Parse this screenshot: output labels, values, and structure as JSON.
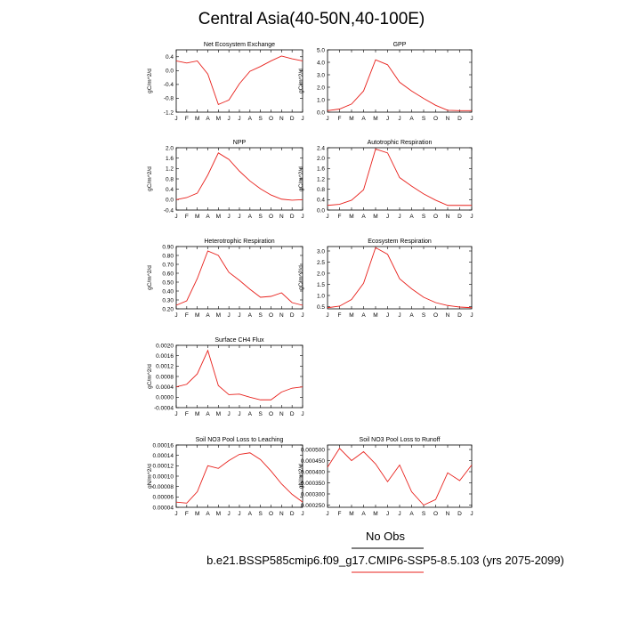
{
  "figure": {
    "title": "Central Asia(40-50N,40-100E)",
    "legend": {
      "obs_label": "No Obs",
      "obs_line_color": "#000000",
      "model_line_color": "#e8211c"
    },
    "caption": "b.e21.BSSP585cmip6.f09_g17.CMIP6-SSP5-8.5.103 (yrs 2075-2099)",
    "series_color": "#e8211c"
  },
  "chart_data": [
    {
      "type": "line",
      "title": "Net Ecosystem Exchange",
      "ylabel": "gC/m^2/d",
      "categories": [
        "J",
        "F",
        "M",
        "A",
        "M",
        "J",
        "J",
        "A",
        "S",
        "O",
        "N",
        "D",
        "J"
      ],
      "x": [
        1,
        2,
        3,
        4,
        5,
        6,
        7,
        8,
        9,
        10,
        11,
        12,
        13
      ],
      "values": [
        0.28,
        0.22,
        0.28,
        -0.1,
        -0.98,
        -0.85,
        -0.38,
        -0.02,
        0.12,
        0.28,
        0.42,
        0.34,
        0.28
      ],
      "ylim": [
        -1.2,
        0.6
      ],
      "yticks": [
        "0.4",
        "0.0",
        "-0.4",
        "-0.8",
        "-1.2"
      ],
      "ytick_values": [
        0.4,
        0.0,
        -0.4,
        -0.8,
        -1.2
      ]
    },
    {
      "type": "line",
      "title": "GPP",
      "ylabel": "gC/m^2/d",
      "categories": [
        "J",
        "F",
        "M",
        "A",
        "M",
        "J",
        "J",
        "A",
        "S",
        "O",
        "N",
        "D",
        "J"
      ],
      "x": [
        1,
        2,
        3,
        4,
        5,
        6,
        7,
        8,
        9,
        10,
        11,
        12,
        13
      ],
      "values": [
        0.12,
        0.25,
        0.65,
        1.7,
        4.2,
        3.8,
        2.4,
        1.7,
        1.1,
        0.55,
        0.15,
        0.12,
        0.12
      ],
      "ylim": [
        0,
        5.0
      ],
      "yticks": [
        "5.0",
        "4.0",
        "3.0",
        "2.0",
        "1.0",
        "0.0"
      ],
      "ytick_values": [
        5.0,
        4.0,
        3.0,
        2.0,
        1.0,
        0.0
      ]
    },
    {
      "type": "line",
      "title": "NPP",
      "ylabel": "gC/m^2/d",
      "categories": [
        "J",
        "F",
        "M",
        "A",
        "M",
        "J",
        "J",
        "A",
        "S",
        "O",
        "N",
        "D",
        "J"
      ],
      "x": [
        1,
        2,
        3,
        4,
        5,
        6,
        7,
        8,
        9,
        10,
        11,
        12,
        13
      ],
      "values": [
        0.0,
        0.08,
        0.25,
        0.95,
        1.8,
        1.55,
        1.1,
        0.72,
        0.42,
        0.18,
        0.02,
        -0.02,
        0.0
      ],
      "ylim": [
        -0.4,
        2.0
      ],
      "yticks": [
        "2.0",
        "1.6",
        "1.2",
        "0.8",
        "0.4",
        "0.0",
        "-0.4"
      ],
      "ytick_values": [
        2.0,
        1.6,
        1.2,
        0.8,
        0.4,
        0.0,
        -0.4
      ]
    },
    {
      "type": "line",
      "title": "Autotrophic Respiration",
      "ylabel": "gC/m^2/d",
      "categories": [
        "J",
        "F",
        "M",
        "A",
        "M",
        "J",
        "J",
        "A",
        "S",
        "O",
        "N",
        "D",
        "J"
      ],
      "x": [
        1,
        2,
        3,
        4,
        5,
        6,
        7,
        8,
        9,
        10,
        11,
        12,
        13
      ],
      "values": [
        0.18,
        0.22,
        0.38,
        0.78,
        2.35,
        2.2,
        1.25,
        0.92,
        0.62,
        0.38,
        0.18,
        0.18,
        0.18
      ],
      "ylim": [
        0,
        2.4
      ],
      "yticks": [
        "2.4",
        "2.0",
        "1.6",
        "1.2",
        "0.8",
        "0.4",
        "0.0"
      ],
      "ytick_values": [
        2.4,
        2.0,
        1.6,
        1.2,
        0.8,
        0.4,
        0.0
      ]
    },
    {
      "type": "line",
      "title": "Heterotrophic Respiration",
      "ylabel": "gC/m^2/d",
      "categories": [
        "J",
        "F",
        "M",
        "A",
        "M",
        "J",
        "J",
        "A",
        "S",
        "O",
        "N",
        "D",
        "J"
      ],
      "x": [
        1,
        2,
        3,
        4,
        5,
        6,
        7,
        8,
        9,
        10,
        11,
        12,
        13
      ],
      "values": [
        0.24,
        0.29,
        0.54,
        0.85,
        0.8,
        0.61,
        0.52,
        0.42,
        0.33,
        0.34,
        0.38,
        0.27,
        0.24
      ],
      "ylim": [
        0.2,
        0.9
      ],
      "yticks": [
        "0.90",
        "0.80",
        "0.70",
        "0.60",
        "0.50",
        "0.40",
        "0.30",
        "0.20"
      ],
      "ytick_values": [
        0.9,
        0.8,
        0.7,
        0.6,
        0.5,
        0.4,
        0.3,
        0.2
      ]
    },
    {
      "type": "line",
      "title": "Ecosystem Respiration",
      "ylabel": "gC/m^2/d",
      "categories": [
        "J",
        "F",
        "M",
        "A",
        "M",
        "J",
        "J",
        "A",
        "S",
        "O",
        "N",
        "D",
        "J"
      ],
      "x": [
        1,
        2,
        3,
        4,
        5,
        6,
        7,
        8,
        9,
        10,
        11,
        12,
        13
      ],
      "values": [
        0.45,
        0.52,
        0.82,
        1.55,
        3.15,
        2.85,
        1.75,
        1.3,
        0.92,
        0.68,
        0.55,
        0.48,
        0.45
      ],
      "ylim": [
        0.4,
        3.2
      ],
      "yticks": [
        "3.0",
        "2.5",
        "2.0",
        "1.5",
        "1.0",
        "0.5"
      ],
      "ytick_values": [
        3.0,
        2.5,
        2.0,
        1.5,
        1.0,
        0.5
      ]
    },
    {
      "type": "line",
      "title": "Surface CH4 Flux",
      "ylabel": "gC/m^2/d",
      "categories": [
        "J",
        "F",
        "M",
        "A",
        "M",
        "J",
        "J",
        "A",
        "S",
        "O",
        "N",
        "D",
        "J"
      ],
      "x": [
        1,
        2,
        3,
        4,
        5,
        6,
        7,
        8,
        9,
        10,
        11,
        12,
        13
      ],
      "values": [
        0.0004,
        0.0005,
        0.0009,
        0.0018,
        0.00045,
        0.0001,
        0.00012,
        0.0,
        -0.0001,
        -0.0001,
        0.0002,
        0.00035,
        0.0004
      ],
      "ylim": [
        -0.0004,
        0.002
      ],
      "yticks": [
        "0.0020",
        "0.0016",
        "0.0012",
        "0.0008",
        "0.0004",
        "0.0000",
        "-0.0004"
      ],
      "ytick_values": [
        0.002,
        0.0016,
        0.0012,
        0.0008,
        0.0004,
        0.0,
        -0.0004
      ]
    },
    {
      "type": "line",
      "title": "Soil NO3 Pool Loss to Leaching",
      "ylabel": "gN/m^2/d",
      "categories": [
        "J",
        "F",
        "M",
        "A",
        "M",
        "J",
        "J",
        "A",
        "S",
        "O",
        "N",
        "D",
        "J"
      ],
      "x": [
        1,
        2,
        3,
        4,
        5,
        6,
        7,
        8,
        9,
        10,
        11,
        12,
        13
      ],
      "values": [
        5e-05,
        4.8e-05,
        7e-05,
        0.00012,
        0.000115,
        0.00013,
        0.000142,
        0.000145,
        0.000132,
        0.00011,
        8.5e-05,
        6.5e-05,
        5e-05
      ],
      "ylim": [
        4e-05,
        0.00016
      ],
      "yticks": [
        "0.00016",
        "0.00014",
        "0.00012",
        "0.00010",
        "0.00008",
        "0.00006",
        "0.00004"
      ],
      "ytick_values": [
        0.00016,
        0.00014,
        0.00012,
        0.0001,
        8e-05,
        6e-05,
        4e-05
      ]
    },
    {
      "type": "line",
      "title": "Soil NO3 Pool Loss to Runoff",
      "ylabel": "gN/m^2/d",
      "categories": [
        "J",
        "F",
        "M",
        "A",
        "M",
        "J",
        "J",
        "A",
        "S",
        "O",
        "N",
        "D",
        "J"
      ],
      "x": [
        1,
        2,
        3,
        4,
        5,
        6,
        7,
        8,
        9,
        10,
        11,
        12,
        13
      ],
      "values": [
        0.00042,
        0.000505,
        0.00045,
        0.00049,
        0.000435,
        0.000355,
        0.00043,
        0.00031,
        0.00025,
        0.000275,
        0.000395,
        0.00036,
        0.00043
      ],
      "ylim": [
        0.00024,
        0.00052
      ],
      "yticks": [
        "0.000500",
        "0.000450",
        "0.000400",
        "0.000350",
        "0.000300",
        "0.000250"
      ],
      "ytick_values": [
        0.0005,
        0.00045,
        0.0004,
        0.00035,
        0.0003,
        0.00025
      ]
    }
  ]
}
